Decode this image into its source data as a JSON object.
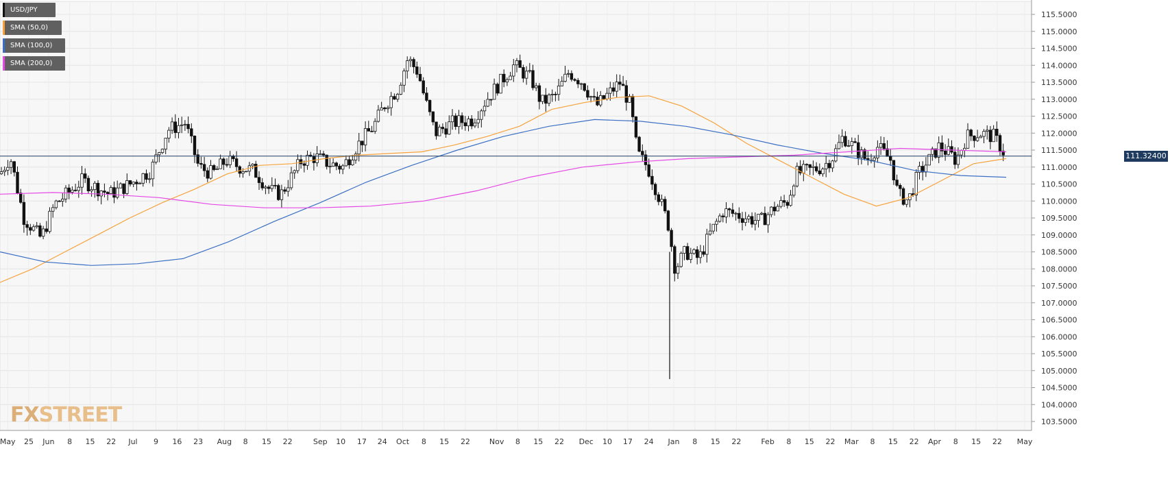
{
  "legend": [
    {
      "label": "USD/JPY",
      "color": "#222222"
    },
    {
      "label": "SMA (50,0)",
      "color": "#f7a23a"
    },
    {
      "label": "SMA (100,0)",
      "color": "#3b6fc4"
    },
    {
      "label": "SMA (200,0)",
      "color": "#e548e5"
    }
  ],
  "current_price_label": "111.32400",
  "logo": {
    "fx": "FX",
    "street": "STREET"
  },
  "chart_data": {
    "type": "candlestick",
    "symbol": "USD/JPY",
    "current_price": 111.324,
    "ylim": [
      103.25,
      116.0
    ],
    "y_ticks": [
      "103.5000",
      "104.0000",
      "104.5000",
      "105.0000",
      "105.5000",
      "106.0000",
      "106.5000",
      "107.0000",
      "107.5000",
      "108.0000",
      "108.5000",
      "109.0000",
      "109.5000",
      "110.0000",
      "110.5000",
      "111.0000",
      "111.5000",
      "112.0000",
      "112.5000",
      "113.0000",
      "113.5000",
      "114.0000",
      "114.5000",
      "115.0000",
      "115.5000"
    ],
    "x_ticks": [
      "May",
      "25",
      "Jun",
      "8",
      "15",
      "22",
      "Jul",
      "9",
      "16",
      "23",
      "Aug",
      "8",
      "15",
      "22",
      "Sep",
      "10",
      "17",
      "24",
      "Oct",
      "8",
      "15",
      "22",
      "Nov",
      "8",
      "15",
      "22",
      "Dec",
      "10",
      "17",
      "24",
      "Jan",
      "8",
      "15",
      "22",
      "Feb",
      "8",
      "15",
      "22",
      "Mar",
      "8",
      "15",
      "22",
      "Apr",
      "8",
      "15",
      "22",
      "May"
    ],
    "grid": true,
    "ohlc": [],
    "sma50": [
      107.6,
      108.0,
      108.5,
      109.0,
      109.5,
      109.95,
      110.35,
      110.8,
      111.05,
      111.1,
      111.25,
      111.35,
      111.4,
      111.45,
      111.65,
      111.9,
      112.2,
      112.7,
      112.9,
      113.05,
      113.1,
      112.8,
      112.3,
      111.7,
      111.2,
      110.7,
      110.2,
      109.85,
      110.1,
      110.6,
      111.1,
      111.25
    ],
    "sma100": [
      108.5,
      108.2,
      108.1,
      108.15,
      108.3,
      108.8,
      109.4,
      109.95,
      110.55,
      111.05,
      111.5,
      111.9,
      112.2,
      112.4,
      112.35,
      112.2,
      111.95,
      111.65,
      111.4,
      111.2,
      110.9,
      110.75,
      110.7
    ],
    "sma200": [
      110.2,
      110.25,
      110.2,
      110.1,
      109.9,
      109.8,
      109.8,
      109.85,
      110.0,
      110.3,
      110.7,
      111.0,
      111.15,
      111.25,
      111.3,
      111.35,
      111.45,
      111.55,
      111.5,
      111.45
    ]
  }
}
